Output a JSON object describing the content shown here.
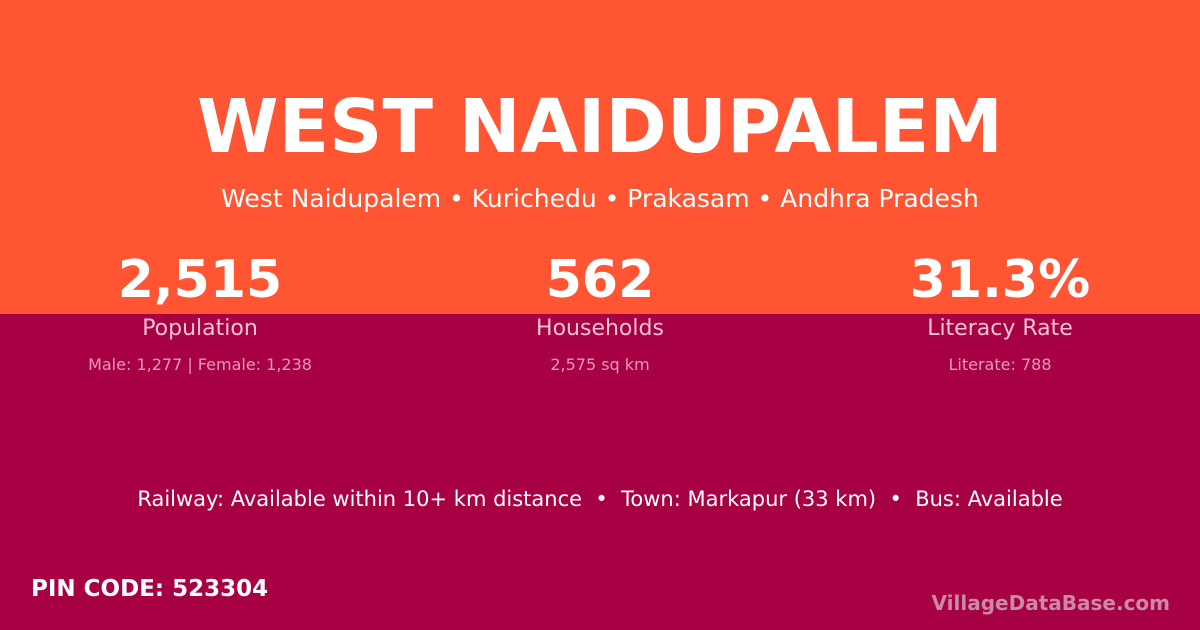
{
  "title": "WEST NAIDUPALEM",
  "subtitle": "West Naidupalem • Kurichedu • Prakasam • Andhra Pradesh",
  "stats": [
    {
      "value": "2,515",
      "label": "Population",
      "detail": "Male: 1,277 | Female: 1,238"
    },
    {
      "value": "562",
      "label": "Households",
      "detail": "2,575 sq km"
    },
    {
      "value": "31.3%",
      "label": "Literacy Rate",
      "detail": "Literate: 788"
    }
  ],
  "info": "Railway: Available within 10+ km distance  •  Town: Markapur (33 km)  •  Bus: Available",
  "pin": "PIN CODE: 523304",
  "brand": "VillageDataBase.com",
  "colors": {
    "top": "#FF5533",
    "bottom": "#A80044"
  }
}
